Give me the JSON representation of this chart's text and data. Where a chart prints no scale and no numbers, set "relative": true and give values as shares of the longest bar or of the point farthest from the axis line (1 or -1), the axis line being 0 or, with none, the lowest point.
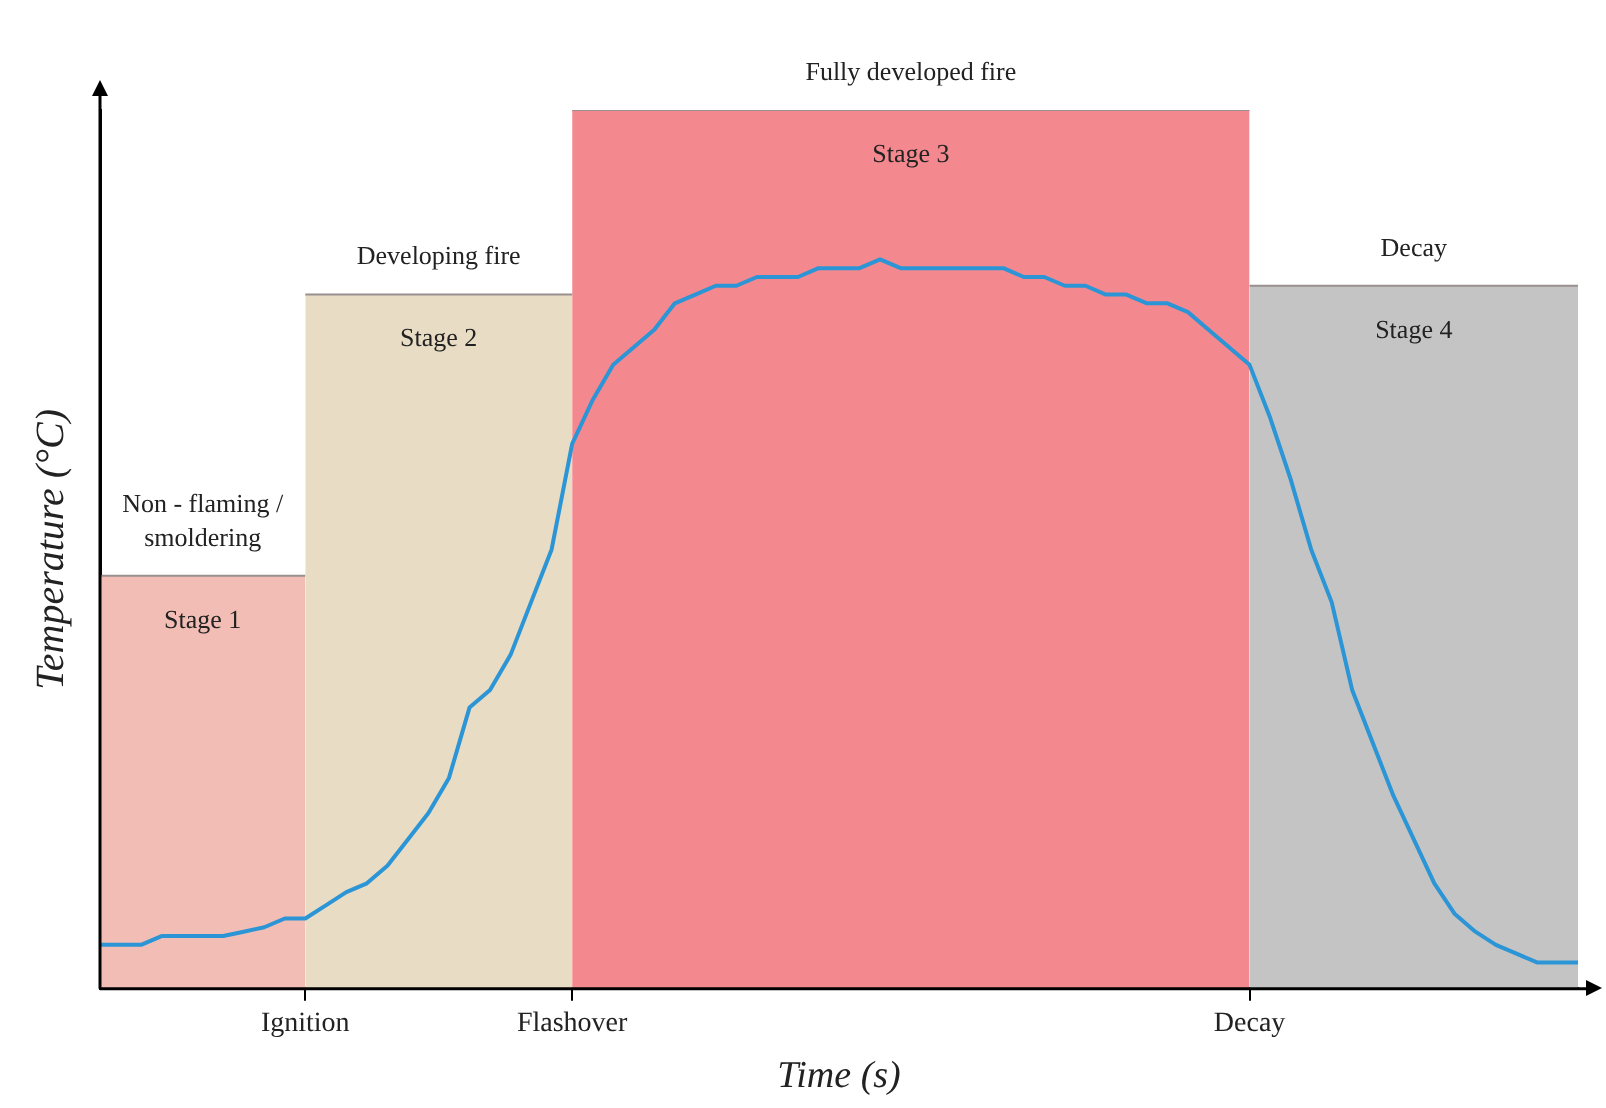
{
  "chart_data": {
    "type": "line",
    "relative": true,
    "xlabel": "Time (s)",
    "ylabel": "Temperature (°C)",
    "categories": [
      null,
      null,
      null,
      null,
      null,
      null,
      null,
      null,
      null,
      null,
      "Ignition",
      null,
      null,
      null,
      null,
      null,
      null,
      null,
      null,
      null,
      null,
      null,
      null,
      "Flashover",
      null,
      null,
      null,
      null,
      null,
      null,
      null,
      null,
      null,
      null,
      null,
      null,
      null,
      null,
      null,
      null,
      null,
      null,
      null,
      null,
      null,
      null,
      null,
      null,
      null,
      null,
      null,
      null,
      null,
      null,
      null,
      null,
      "Decay",
      null,
      null,
      null,
      null,
      null,
      null,
      null,
      null,
      null,
      null,
      null,
      null,
      null,
      null,
      null,
      null
    ],
    "legend": false,
    "grid": false,
    "marker": "none",
    "line_style": "solid",
    "series": [
      {
        "color": "#2b95d6",
        "values": [
          0.05,
          0.05,
          0.05,
          0.06,
          0.06,
          0.06,
          0.06,
          0.065,
          0.07,
          0.08,
          0.08,
          0.095,
          0.11,
          0.12,
          0.14,
          0.17,
          0.2,
          0.24,
          0.32,
          0.34,
          0.38,
          0.44,
          0.5,
          0.62,
          0.67,
          0.71,
          0.73,
          0.75,
          0.78,
          0.79,
          0.8,
          0.8,
          0.81,
          0.81,
          0.81,
          0.82,
          0.82,
          0.82,
          0.83,
          0.82,
          0.82,
          0.82,
          0.82,
          0.82,
          0.82,
          0.81,
          0.81,
          0.8,
          0.8,
          0.79,
          0.79,
          0.78,
          0.78,
          0.77,
          0.75,
          0.73,
          0.71,
          0.65,
          0.58,
          0.5,
          0.44,
          0.34,
          0.28,
          0.22,
          0.17,
          0.12,
          0.085,
          0.065,
          0.05,
          0.04,
          0.03,
          0.03,
          0.03
        ]
      },
      {
        "type": "area",
        "name": "Stage 1",
        "color": "#f2bdb5",
        "values": [
          0.47,
          0.47,
          0.47,
          0.47,
          0.47,
          0.47,
          0.47,
          0.47,
          0.47,
          0.47,
          0.47,
          null,
          null,
          null,
          null,
          null,
          null,
          null,
          null,
          null,
          null,
          null,
          null,
          null,
          null,
          null,
          null,
          null,
          null,
          null,
          null,
          null,
          null,
          null,
          null,
          null,
          null,
          null,
          null,
          null,
          null,
          null,
          null,
          null,
          null,
          null,
          null,
          null,
          null,
          null,
          null,
          null,
          null,
          null,
          null,
          null,
          null,
          null,
          null,
          null,
          null,
          null,
          null,
          null,
          null,
          null,
          null,
          null,
          null,
          null,
          null,
          null,
          null
        ]
      },
      {
        "type": "area",
        "name": "Stage 2",
        "color": "#e8dcc5",
        "values": [
          null,
          null,
          null,
          null,
          null,
          null,
          null,
          null,
          null,
          null,
          0.79,
          0.79,
          0.79,
          0.79,
          0.79,
          0.79,
          0.79,
          0.79,
          0.79,
          0.79,
          0.79,
          0.79,
          0.79,
          0.79,
          null,
          null,
          null,
          null,
          null,
          null,
          null,
          null,
          null,
          null,
          null,
          null,
          null,
          null,
          null,
          null,
          null,
          null,
          null,
          null,
          null,
          null,
          null,
          null,
          null,
          null,
          null,
          null,
          null,
          null,
          null,
          null,
          null,
          null,
          null,
          null,
          null,
          null,
          null,
          null,
          null,
          null,
          null,
          null,
          null,
          null,
          null,
          null,
          null
        ]
      },
      {
        "type": "area",
        "name": "Stage 3",
        "color": "#f4888f",
        "values": [
          null,
          null,
          null,
          null,
          null,
          null,
          null,
          null,
          null,
          null,
          null,
          null,
          null,
          null,
          null,
          null,
          null,
          null,
          null,
          null,
          null,
          null,
          null,
          1,
          1,
          1,
          1,
          1,
          1,
          1,
          1,
          1,
          1,
          1,
          1,
          1,
          1,
          1,
          1,
          1,
          1,
          1,
          1,
          1,
          1,
          1,
          1,
          1,
          1,
          1,
          1,
          1,
          1,
          1,
          1,
          1,
          1,
          null,
          null,
          null,
          null,
          null,
          null,
          null,
          null,
          null,
          null,
          null,
          null,
          null,
          null,
          null,
          null
        ]
      },
      {
        "type": "area",
        "name": "Stage 4",
        "color": "#c4c4c4",
        "values": [
          null,
          null,
          null,
          null,
          null,
          null,
          null,
          null,
          null,
          null,
          null,
          null,
          null,
          null,
          null,
          null,
          null,
          null,
          null,
          null,
          null,
          null,
          null,
          null,
          null,
          null,
          null,
          null,
          null,
          null,
          null,
          null,
          null,
          null,
          null,
          null,
          null,
          null,
          null,
          null,
          null,
          null,
          null,
          null,
          null,
          null,
          null,
          null,
          null,
          null,
          null,
          null,
          null,
          null,
          null,
          null,
          0.8,
          0.8,
          0.8,
          0.8,
          0.8,
          0.8,
          0.8,
          0.8,
          0.8,
          0.8,
          0.8,
          0.8,
          0.8,
          0.8,
          0.8,
          0.8,
          0.8
        ]
      }
    ],
    "annotations": [
      {
        "text": "Non - flaming / smoldering",
        "y": 0.47
      },
      {
        "text": "Developing fire",
        "y": 0.79
      },
      {
        "text": "Fully developed fire",
        "y": 1
      },
      {
        "text": "Decay",
        "y": 0.8
      }
    ]
  }
}
